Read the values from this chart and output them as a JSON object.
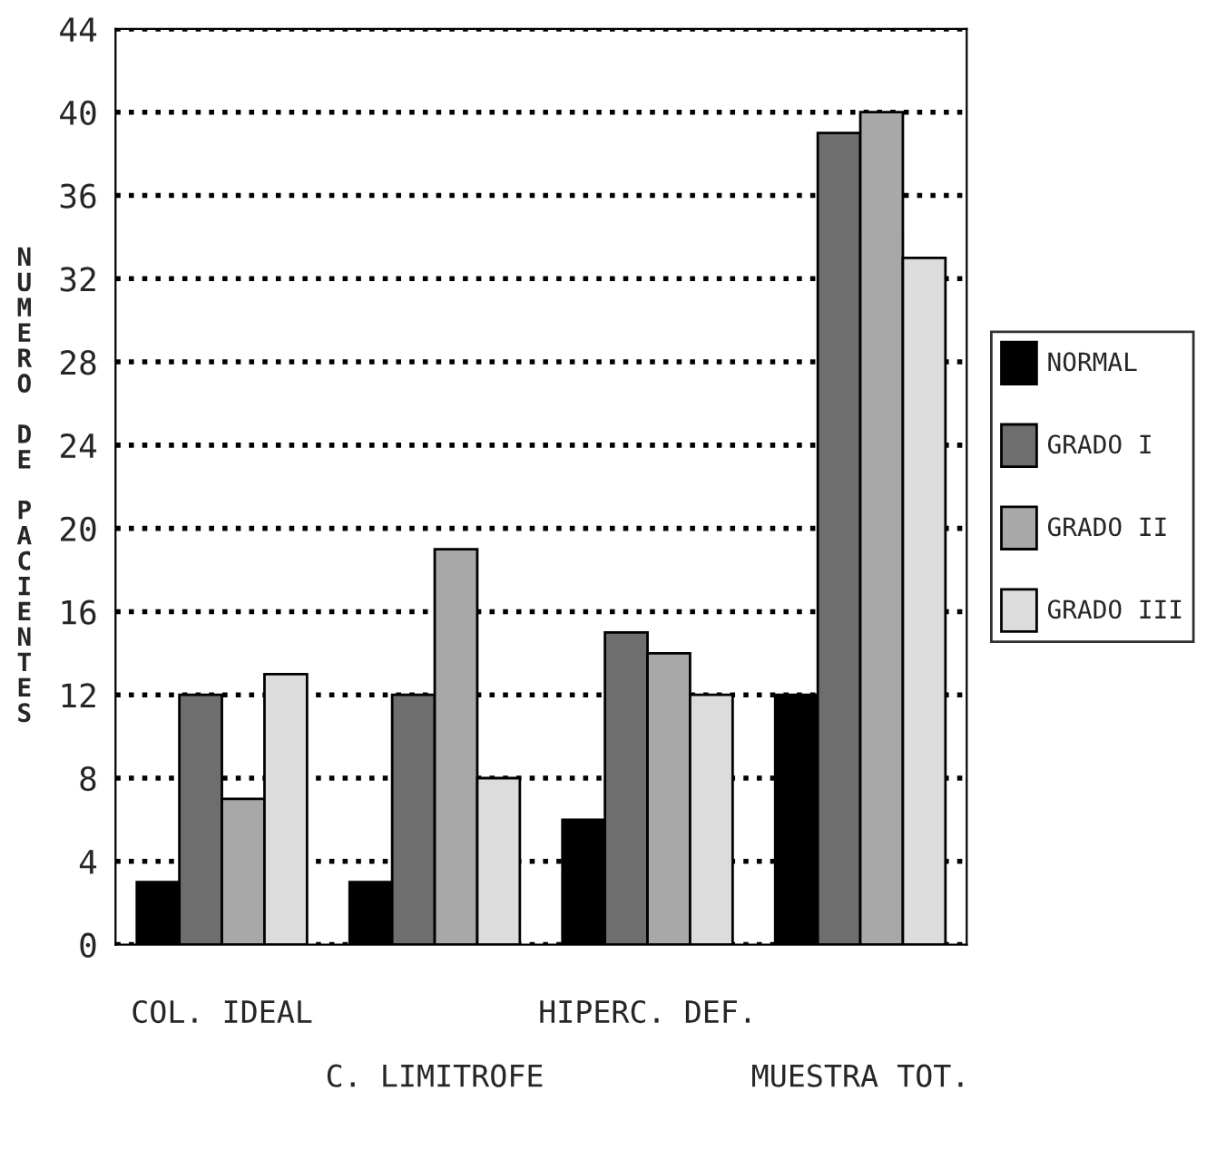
{
  "chart_data": {
    "type": "bar",
    "ylabel": "NUMERO DE PACIENTES",
    "categories": [
      "COL. IDEAL",
      "C. LIMITROFE",
      "HIPERC. DEF.",
      "MUESTRA TOT."
    ],
    "series": [
      {
        "name": "NORMAL",
        "color": "#000000",
        "values": [
          3,
          3,
          6,
          12
        ]
      },
      {
        "name": "GRADO I",
        "color": "#6e6e6e",
        "values": [
          12,
          12,
          15,
          39
        ]
      },
      {
        "name": "GRADO II",
        "color": "#a8a8a8",
        "values": [
          7,
          19,
          14,
          40
        ]
      },
      {
        "name": "GRADO III",
        "color": "#dcdcdc",
        "values": [
          13,
          8,
          12,
          33
        ]
      }
    ],
    "ylim": [
      0,
      44
    ],
    "yticks": [
      0,
      4,
      8,
      12,
      16,
      20,
      24,
      28,
      32,
      36,
      40,
      44
    ],
    "grid": "y",
    "legend": "right"
  }
}
